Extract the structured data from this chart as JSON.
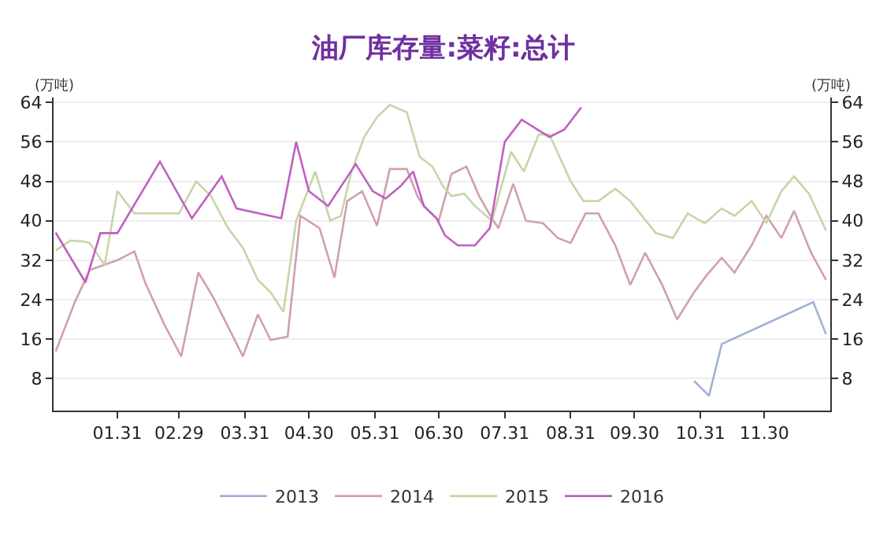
{
  "chart_data": {
    "type": "line",
    "title": "油厂库存量:菜籽:总计",
    "ylabel": "(万吨)",
    "y2label": "(万吨)",
    "xlim": [
      "--01-01",
      "--12-31"
    ],
    "xticks": [
      {
        "value": "--01-31",
        "label": "01.31"
      },
      {
        "value": "--02-29",
        "label": "02.29"
      },
      {
        "value": "--03-31",
        "label": "03.31"
      },
      {
        "value": "--04-30",
        "label": "04.30"
      },
      {
        "value": "--05-31",
        "label": "05.31"
      },
      {
        "value": "--06-30",
        "label": "06.30"
      },
      {
        "value": "--07-31",
        "label": "07.31"
      },
      {
        "value": "--08-31",
        "label": "08.31"
      },
      {
        "value": "--09-30",
        "label": "09.30"
      },
      {
        "value": "--10-31",
        "label": "10.31"
      },
      {
        "value": "--11-30",
        "label": "11.30"
      }
    ],
    "ylim": [
      1.5,
      65
    ],
    "yticks": [
      8,
      16,
      24,
      32,
      40,
      48,
      56,
      64
    ],
    "y2lim": [
      1.5,
      65
    ],
    "y2ticks": [
      8,
      16,
      24,
      32,
      40,
      48,
      56,
      64
    ],
    "grid": "y",
    "legend": "bottom",
    "marker": "none",
    "line_style": "solid",
    "series": [
      {
        "name": "2013",
        "color": "#9fb0d8",
        "x": [
          "--10-28",
          "--11-04",
          "--11-10",
          "--12-23",
          "--12-29"
        ],
        "values": [
          7.5,
          4.5,
          15,
          23.5,
          17
        ]
      },
      {
        "name": "2014",
        "color": "#d0a0b0",
        "x": [
          "--01-02",
          "--01-11",
          "--01-18",
          "--01-31",
          "--02-08",
          "--02-13",
          "--02-22",
          "--03-01",
          "--03-09",
          "--03-16",
          "--03-23",
          "--03-30",
          "--04-06",
          "--04-12",
          "--04-20",
          "--04-26",
          "--05-05",
          "--05-12",
          "--05-18",
          "--05-25",
          "--06-01",
          "--06-07",
          "--06-15",
          "--06-20",
          "--06-23",
          "--06-30",
          "--07-06",
          "--07-13",
          "--07-19",
          "--07-25",
          "--07-28",
          "--08-04",
          "--08-10",
          "--08-18",
          "--08-25",
          "--08-31",
          "--09-07",
          "--09-13",
          "--09-21",
          "--09-28",
          "--10-05",
          "--10-13",
          "--10-20",
          "--10-28",
          "--11-03",
          "--11-10",
          "--11-16",
          "--11-24",
          "--12-01",
          "--12-08",
          "--12-14",
          "--12-22",
          "--12-29"
        ],
        "values": [
          13.5,
          23.5,
          30,
          32,
          33.8,
          27.5,
          19,
          12.5,
          29.5,
          24.5,
          18.5,
          12.5,
          21,
          15.8,
          16.5,
          41,
          38.5,
          28.5,
          44,
          46,
          39,
          50.5,
          50.5,
          45,
          43,
          40,
          49.5,
          51,
          45,
          40.5,
          38.5,
          47.5,
          40,
          39.5,
          36.5,
          35.5,
          41.5,
          41.5,
          35,
          27,
          33.5,
          27,
          20,
          25.5,
          29,
          32.5,
          29.5,
          35,
          41,
          36.5,
          42,
          33.5,
          28
        ]
      },
      {
        "name": "2015",
        "color": "#c8d4a8",
        "x": [
          "--01-02",
          "--01-09",
          "--01-15",
          "--01-18",
          "--01-25",
          "--01-31",
          "--02-08",
          "--02-29",
          "--03-08",
          "--03-15",
          "--03-23",
          "--03-30",
          "--04-06",
          "--04-12",
          "--04-18",
          "--04-24",
          "--05-03",
          "--05-10",
          "--05-15",
          "--05-20",
          "--05-26",
          "--06-01",
          "--06-07",
          "--06-15",
          "--06-21",
          "--06-27",
          "--07-02",
          "--07-06",
          "--07-12",
          "--07-17",
          "--07-25",
          "--08-03",
          "--08-09",
          "--08-16",
          "--08-21",
          "--08-31",
          "--09-06",
          "--09-13",
          "--09-21",
          "--09-28",
          "--10-10",
          "--10-18",
          "--10-25",
          "--11-02",
          "--11-10",
          "--11-16",
          "--11-24",
          "--12-01",
          "--12-08",
          "--12-14",
          "--12-21",
          "--12-29"
        ],
        "values": [
          34,
          36,
          35.8,
          35.5,
          31,
          46,
          41.5,
          41.5,
          48,
          45,
          38.5,
          34.5,
          28,
          25.5,
          21.5,
          40,
          50,
          40,
          41,
          50,
          57,
          61,
          63.5,
          62,
          53,
          51,
          47,
          45,
          45.5,
          43,
          40,
          54,
          50,
          57.5,
          57.5,
          48,
          44,
          44,
          46.5,
          44,
          37.5,
          36.5,
          41.5,
          39.5,
          42.5,
          41,
          44,
          39.5,
          46,
          49,
          45.5,
          38
        ]
      },
      {
        "name": "2016",
        "color": "#c060c0",
        "x": [
          "--01-02",
          "--01-16",
          "--01-23",
          "--01-31",
          "--02-20",
          "--03-06",
          "--03-20",
          "--03-27",
          "--04-17",
          "--04-24",
          "--04-30",
          "--05-09",
          "--05-22",
          "--05-30",
          "--06-05",
          "--06-12",
          "--06-18",
          "--06-23",
          "--06-29",
          "--07-03",
          "--07-09",
          "--07-17",
          "--07-24",
          "--07-31",
          "--08-08",
          "--08-21",
          "--08-28",
          "--09-05"
        ],
        "values": [
          37.6,
          27.5,
          37.5,
          37.5,
          52,
          40.5,
          49,
          42.5,
          40.5,
          56,
          46,
          43,
          51.5,
          46,
          44.5,
          47,
          50,
          43,
          40.5,
          37,
          35,
          35,
          38.5,
          56,
          60.5,
          57,
          58.5,
          63
        ]
      }
    ]
  }
}
